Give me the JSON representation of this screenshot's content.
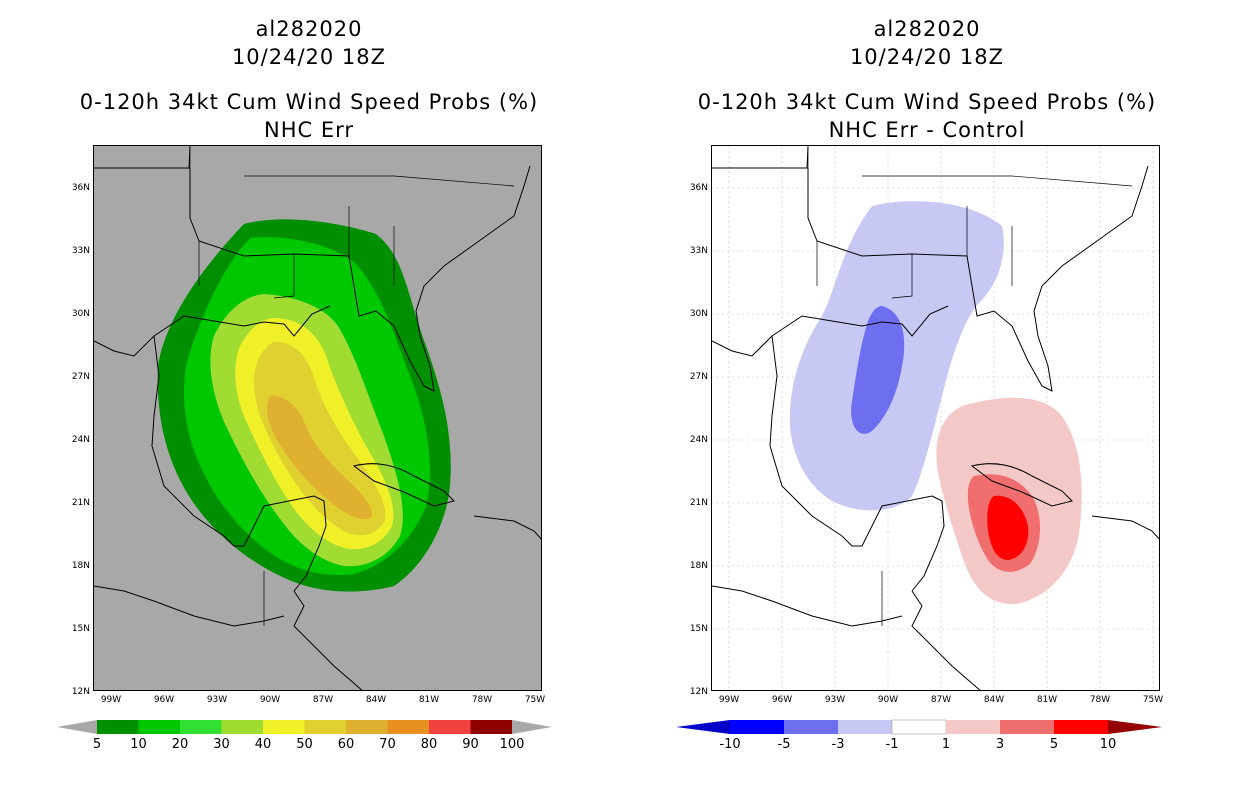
{
  "left_panel": {
    "storm_id": "al282020",
    "datetime": "10/24/20 18Z",
    "product_title": "0-120h 34kt Cum Wind Speed Probs (%)",
    "subtitle": "NHC Err",
    "lat_labels": [
      "36N",
      "33N",
      "30N",
      "27N",
      "24N",
      "21N",
      "18N",
      "15N",
      "12N"
    ],
    "lon_labels": [
      "99W",
      "96W",
      "93W",
      "90W",
      "87W",
      "84W",
      "81W",
      "78W",
      "75W"
    ],
    "colorbar": {
      "labels": [
        "5",
        "10",
        "20",
        "30",
        "40",
        "50",
        "60",
        "70",
        "80",
        "90",
        "100"
      ],
      "colors": [
        "#008f00",
        "#00c800",
        "#31e031",
        "#a0dc32",
        "#f0f028",
        "#e0d030",
        "#e0b030",
        "#e89020",
        "#f04040",
        "#8c0000",
        "#8a00e0"
      ]
    }
  },
  "right_panel": {
    "storm_id": "al282020",
    "datetime": "10/24/20 18Z",
    "product_title": "0-120h 34kt Cum Wind Speed Probs (%)",
    "subtitle": "NHC Err - Control",
    "lat_labels": [
      "36N",
      "33N",
      "30N",
      "27N",
      "24N",
      "21N",
      "18N",
      "15N",
      "12N"
    ],
    "lon_labels": [
      "99W",
      "96W",
      "93W",
      "90W",
      "87W",
      "84W",
      "81W",
      "78W",
      "75W"
    ],
    "colorbar": {
      "labels": [
        "-10",
        "-5",
        "-3",
        "-1",
        "1",
        "3",
        "5",
        "10"
      ],
      "colors": [
        "#0000c8",
        "#0000ff",
        "#6e6ef0",
        "#c8c8f5",
        "#ffffff",
        "#f5c8c8",
        "#f06e6e",
        "#ff0000",
        "#960000"
      ]
    }
  }
}
